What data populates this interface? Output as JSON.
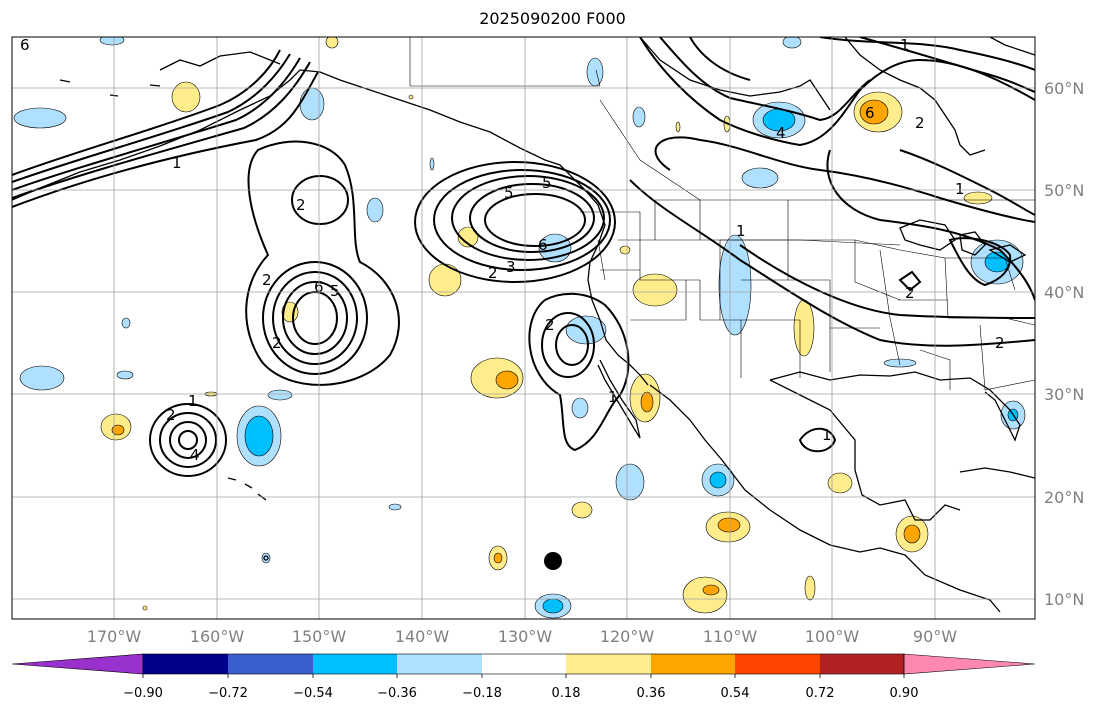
{
  "title": "2025090200 F000",
  "map": {
    "lon_labels": [
      "170°W",
      "160°W",
      "150°W",
      "140°W",
      "130°W",
      "120°W",
      "110°W",
      "100°W",
      "90°W"
    ],
    "lat_labels": [
      "60°N",
      "50°N",
      "40°N",
      "30°N",
      "20°N",
      "10°N"
    ],
    "contour_labels": [
      "6",
      "1",
      "2",
      "2",
      "6",
      "5",
      "2",
      "5",
      "2",
      "3",
      "6",
      "2",
      "1",
      "4",
      "1",
      "2",
      "5",
      "2",
      "4",
      "1",
      "1",
      "1",
      "2",
      "6",
      "2",
      "1"
    ],
    "marker": "storm-center-dot",
    "colors": {
      "land_outline": "#000000",
      "grid": "#a0a0a0",
      "contour": "#000000"
    }
  },
  "colorbar": {
    "ticks": [
      "−0.90",
      "−0.72",
      "−0.54",
      "−0.36",
      "−0.18",
      "0.18",
      "0.36",
      "0.54",
      "0.72",
      "0.90"
    ],
    "colors": [
      "#9932cc",
      "#00008b",
      "#3a5fcd",
      "#00bfff",
      "#b0e0ff",
      "#ffffff",
      "#ffec8b",
      "#ffa500",
      "#ff4500",
      "#b22222",
      "#ff88b0"
    ]
  }
}
